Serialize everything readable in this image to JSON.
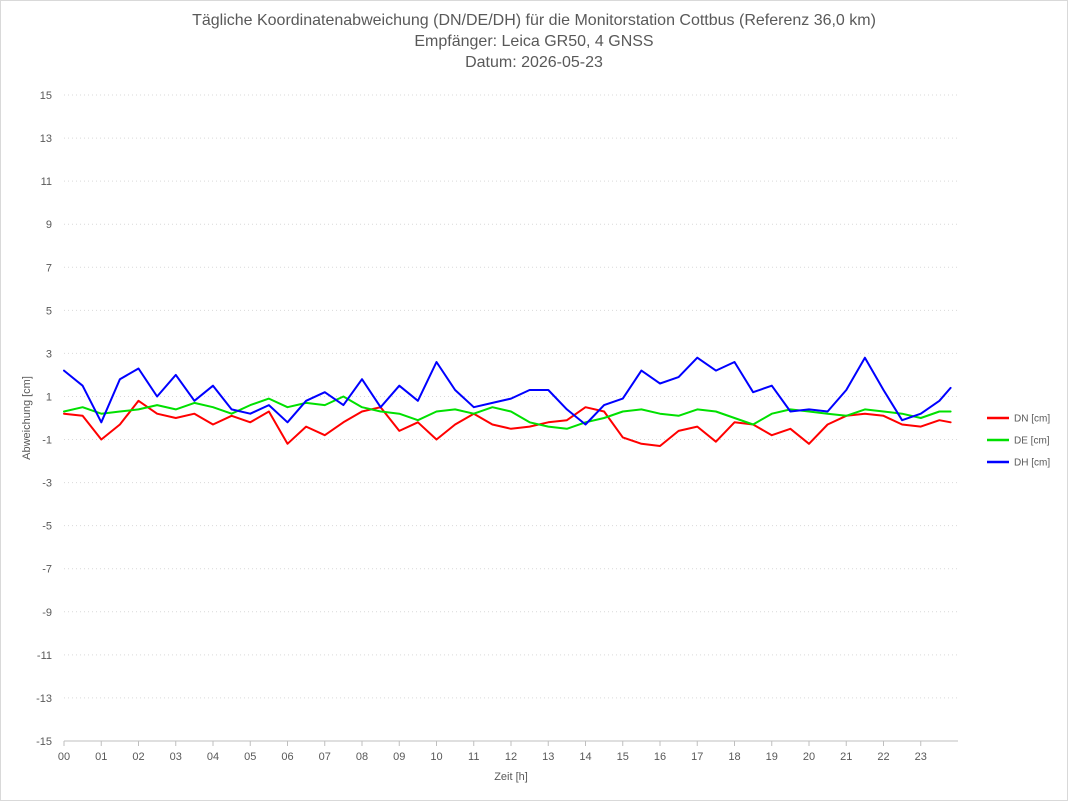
{
  "chart_data": {
    "type": "line",
    "title_lines": [
      "Tägliche Koordinatenabweichung (DN/DE/DH) für die Monitorstation Cottbus (Referenz 36,0 km)",
      "Empfänger: Leica GR50, 4 GNSS",
      "Datum: 2026-05-23"
    ],
    "xlabel": "Zeit [h]",
    "ylabel": "Abweichung [cm]",
    "x_ticks": [
      "00",
      "01",
      "02",
      "03",
      "04",
      "05",
      "06",
      "07",
      "08",
      "09",
      "10",
      "11",
      "12",
      "13",
      "14",
      "15",
      "16",
      "17",
      "18",
      "19",
      "20",
      "21",
      "22",
      "23"
    ],
    "xlim": [
      0,
      24
    ],
    "ylim": [
      -15,
      15
    ],
    "y_ticks": [
      15,
      13,
      11,
      9,
      7,
      5,
      3,
      1,
      -1,
      -3,
      -5,
      -7,
      -9,
      -11,
      -13,
      -15
    ],
    "grid": "horizontal-dotted",
    "legend_position": "right",
    "series": [
      {
        "name": "DN [cm]",
        "color": "#ff0000",
        "x": [
          0,
          0.5,
          1,
          1.5,
          2,
          2.5,
          3,
          3.5,
          4,
          4.5,
          5,
          5.5,
          6,
          6.5,
          7,
          7.5,
          8,
          8.5,
          9,
          9.5,
          10,
          10.5,
          11,
          11.5,
          12,
          12.5,
          13,
          13.5,
          14,
          14.5,
          15,
          15.5,
          16,
          16.5,
          17,
          17.5,
          18,
          18.5,
          19,
          19.5,
          20,
          20.5,
          21,
          21.5,
          22,
          22.5,
          23,
          23.5,
          23.8
        ],
        "values": [
          0.2,
          0.1,
          -1.0,
          -0.3,
          0.8,
          0.2,
          0.0,
          0.2,
          -0.3,
          0.1,
          -0.2,
          0.3,
          -1.2,
          -0.4,
          -0.8,
          -0.2,
          0.3,
          0.5,
          -0.6,
          -0.2,
          -1.0,
          -0.3,
          0.2,
          -0.3,
          -0.5,
          -0.4,
          -0.2,
          -0.1,
          0.5,
          0.3,
          -0.9,
          -1.2,
          -1.3,
          -0.6,
          -0.4,
          -1.1,
          -0.2,
          -0.3,
          -0.8,
          -0.5,
          -1.2,
          -0.3,
          0.1,
          0.2,
          0.1,
          -0.3,
          -0.4,
          -0.1,
          -0.2
        ]
      },
      {
        "name": "DE [cm]",
        "color": "#00e000",
        "x": [
          0,
          0.5,
          1,
          1.5,
          2,
          2.5,
          3,
          3.5,
          4,
          4.5,
          5,
          5.5,
          6,
          6.5,
          7,
          7.5,
          8,
          8.5,
          9,
          9.5,
          10,
          10.5,
          11,
          11.5,
          12,
          12.5,
          13,
          13.5,
          14,
          14.5,
          15,
          15.5,
          16,
          16.5,
          17,
          17.5,
          18,
          18.5,
          19,
          19.5,
          20,
          20.5,
          21,
          21.5,
          22,
          22.5,
          23,
          23.5,
          23.8
        ],
        "values": [
          0.3,
          0.5,
          0.2,
          0.3,
          0.4,
          0.6,
          0.4,
          0.7,
          0.5,
          0.2,
          0.6,
          0.9,
          0.5,
          0.7,
          0.6,
          1.0,
          0.5,
          0.3,
          0.2,
          -0.1,
          0.3,
          0.4,
          0.2,
          0.5,
          0.3,
          -0.2,
          -0.4,
          -0.5,
          -0.2,
          0.0,
          0.3,
          0.4,
          0.2,
          0.1,
          0.4,
          0.3,
          0.0,
          -0.3,
          0.2,
          0.4,
          0.3,
          0.2,
          0.1,
          0.4,
          0.3,
          0.2,
          0.0,
          0.3,
          0.3
        ]
      },
      {
        "name": "DH [cm]",
        "color": "#0000ff",
        "x": [
          0,
          0.5,
          1,
          1.5,
          2,
          2.5,
          3,
          3.5,
          4,
          4.5,
          5,
          5.5,
          6,
          6.5,
          7,
          7.5,
          8,
          8.5,
          9,
          9.5,
          10,
          10.5,
          11,
          11.5,
          12,
          12.5,
          13,
          13.5,
          14,
          14.5,
          15,
          15.5,
          16,
          16.5,
          17,
          17.5,
          18,
          18.5,
          19,
          19.5,
          20,
          20.5,
          21,
          21.5,
          22,
          22.5,
          23,
          23.5,
          23.8
        ],
        "values": [
          2.2,
          1.5,
          -0.2,
          1.8,
          2.3,
          1.0,
          2.0,
          0.8,
          1.5,
          0.4,
          0.2,
          0.6,
          -0.2,
          0.8,
          1.2,
          0.6,
          1.8,
          0.5,
          1.5,
          0.8,
          2.6,
          1.3,
          0.5,
          0.7,
          0.9,
          1.3,
          1.3,
          0.4,
          -0.3,
          0.6,
          0.9,
          2.2,
          1.6,
          1.9,
          2.8,
          2.2,
          2.6,
          1.2,
          1.5,
          0.3,
          0.4,
          0.3,
          1.3,
          2.8,
          1.3,
          -0.1,
          0.2,
          0.8,
          1.4
        ]
      }
    ]
  }
}
